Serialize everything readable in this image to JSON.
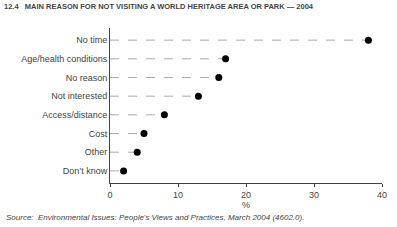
{
  "chart_data": {
    "type": "lollipop",
    "orientation": "horizontal",
    "title": "12.4   MAIN REASON FOR NOT VISITING A WORLD HERITAGE AREA OR PARK — 2004",
    "categories": [
      "No time",
      "Age/health conditions",
      "No reason",
      "Not interested",
      "Access/distance",
      "Cost",
      "Other",
      "Don’t know"
    ],
    "values": [
      38,
      17,
      16,
      13,
      8,
      5,
      4,
      2
    ],
    "xlabel": "%",
    "xlim": [
      0,
      40
    ],
    "xticks": [
      0,
      10,
      20,
      30,
      40
    ],
    "annotations": [
      "Source:  Environmental Issues: People's Views and Practices, March 2004 (4602.0)."
    ],
    "color": "#000000",
    "line_style": "dashed",
    "grid": false
  }
}
